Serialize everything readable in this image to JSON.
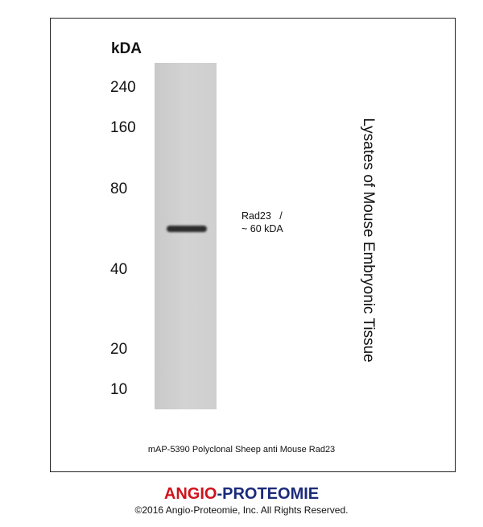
{
  "unit_label": "kDA",
  "markers": [
    {
      "label": "240",
      "kda": 240
    },
    {
      "label": "160",
      "kda": 160
    },
    {
      "label": "80",
      "kda": 80
    },
    {
      "label": "40",
      "kda": 40
    },
    {
      "label": "20",
      "kda": 20
    },
    {
      "label": "10",
      "kda": 10
    }
  ],
  "band": {
    "line1": "Rad23   /",
    "line2": "~ 60 kDA",
    "kda": 60
  },
  "sample_label": "Lysates of Mouse Embryonic Tissue",
  "caption": "mAP-5390 Polyclonal Sheep anti Mouse Rad23",
  "brand": {
    "part1": "ANGIO",
    "sep": "-",
    "part2": "PROTEOMIE",
    "color1": "#d0121b",
    "color2": "#1b2a7a"
  },
  "copyright": "©2016 Angio-Proteomie, Inc.  All Rights Reserved."
}
